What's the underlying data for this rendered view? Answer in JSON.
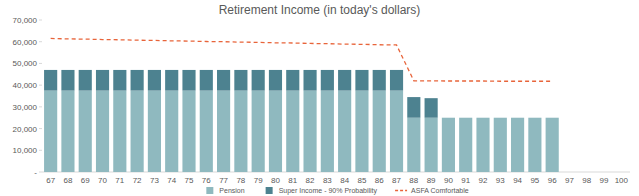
{
  "chart_data": {
    "type": "bar",
    "title": "Retirement Income (in today's dollars)",
    "stacked": true,
    "grid": false,
    "legend": "bottom",
    "categories": [
      "67",
      "68",
      "69",
      "70",
      "71",
      "72",
      "73",
      "74",
      "75",
      "76",
      "77",
      "78",
      "79",
      "80",
      "81",
      "82",
      "83",
      "84",
      "85",
      "86",
      "87",
      "88",
      "89",
      "90",
      "91",
      "92",
      "93",
      "94",
      "95",
      "96",
      "97",
      "98",
      "99",
      "100"
    ],
    "ylim": [
      0,
      70000
    ],
    "yticks": [
      {
        "value": 0,
        "label": "-"
      },
      {
        "value": 10000,
        "label": "10,000"
      },
      {
        "value": 20000,
        "label": "20,000"
      },
      {
        "value": 30000,
        "label": "30,000"
      },
      {
        "value": 40000,
        "label": "40,000"
      },
      {
        "value": 50000,
        "label": "50,000"
      },
      {
        "value": 60000,
        "label": "60,000"
      },
      {
        "value": 70000,
        "label": "70,000"
      }
    ],
    "series": [
      {
        "name": "Pension",
        "type": "bar",
        "color": "#8fb9bf",
        "values": [
          37500,
          37500,
          37500,
          37500,
          37500,
          37500,
          37500,
          37500,
          37500,
          37500,
          37500,
          37500,
          37500,
          37500,
          37500,
          37500,
          37500,
          37500,
          37500,
          37500,
          37500,
          25000,
          25000,
          25000,
          25000,
          25000,
          25000,
          25000,
          25000,
          25000,
          0,
          0,
          0,
          0
        ]
      },
      {
        "name": "Super Income - 90% Probability",
        "type": "bar",
        "color": "#4d8290",
        "values": [
          9500,
          9500,
          9500,
          9500,
          9500,
          9500,
          9500,
          9500,
          9500,
          9500,
          9500,
          9500,
          9500,
          9500,
          9500,
          9500,
          9500,
          9500,
          9500,
          9500,
          9500,
          9500,
          9000,
          0,
          0,
          0,
          0,
          0,
          0,
          0,
          0,
          0,
          0,
          0
        ]
      },
      {
        "name": "ASFA Comfortable",
        "type": "line",
        "line_style": "dashed",
        "color": "#e8643a",
        "values": [
          61500,
          61300,
          61200,
          61000,
          60900,
          60700,
          60600,
          60400,
          60300,
          60100,
          60000,
          59800,
          59700,
          59500,
          59400,
          59200,
          59100,
          58900,
          58800,
          58600,
          58500,
          42000,
          42000,
          41900,
          41900,
          41900,
          41800,
          41800,
          41800,
          41800,
          null,
          null,
          null,
          null
        ]
      }
    ]
  }
}
